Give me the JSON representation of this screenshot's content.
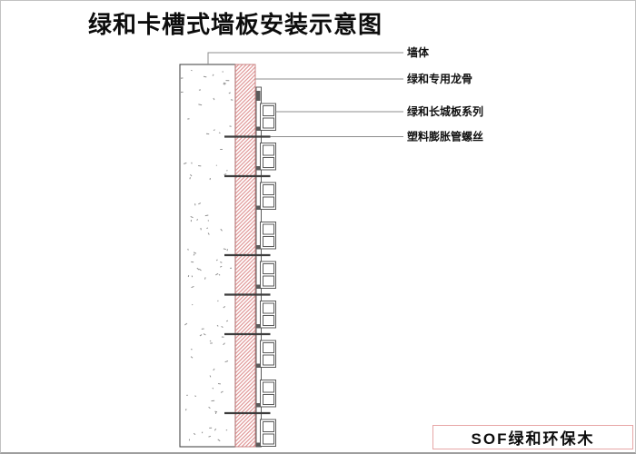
{
  "title": "绿和卡槽式墙板安装示意图",
  "callouts": {
    "wall": "墙体",
    "keel": "绿和专用龙骨",
    "panel": "绿和长城板系列",
    "screw": "塑料膨胀管螺丝"
  },
  "footer": {
    "brand": "SOF绿和环保木"
  },
  "colors": {
    "hatch": "#dd8f8f",
    "hatch_edge": "#c47a7a",
    "outline": "#4a4a4a",
    "leader": "#8c8c8c",
    "screw": "#3c3c3c",
    "speckle": "#8f8f8f",
    "footer_border": "#e7a6a6",
    "page_border": "#c2c2c2"
  }
}
